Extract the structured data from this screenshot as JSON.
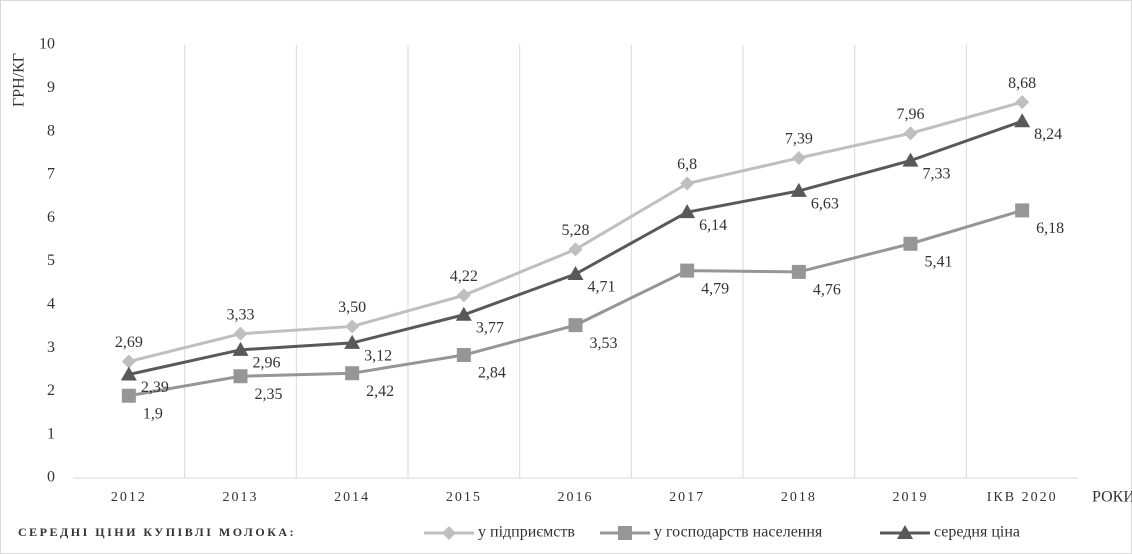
{
  "chart_data": {
    "type": "line",
    "y_label": "ГРН/КГ",
    "x_label": "РОКИ",
    "legend_title": "СЕРЕДНІ ЦІНИ КУПІВЛІ МОЛОКА:",
    "categories": [
      "2012",
      "2013",
      "2014",
      "2015",
      "2016",
      "2017",
      "2018",
      "2019",
      "ІКВ 2020"
    ],
    "series": [
      {
        "name": "у підприємств",
        "color": "#bfbfbf",
        "marker": "diamond",
        "values": [
          2.69,
          3.33,
          3.5,
          4.22,
          5.28,
          6.8,
          7.39,
          7.96,
          8.68
        ],
        "value_labels": [
          "2,69",
          "3,33",
          "3,50",
          "4,22",
          "5,28",
          "6,8",
          "7,39",
          "7,96",
          "8,68"
        ]
      },
      {
        "name": "у господарств населення",
        "color": "#969696",
        "marker": "square",
        "values": [
          1.9,
          2.35,
          2.42,
          2.84,
          3.53,
          4.79,
          4.76,
          5.41,
          6.18
        ],
        "value_labels": [
          "1,9",
          "2,35",
          "2,42",
          "2,84",
          "3,53",
          "4,79",
          "4,76",
          "5,41",
          "6,18"
        ]
      },
      {
        "name": "середня ціна",
        "color": "#595959",
        "marker": "triangle",
        "values": [
          2.39,
          2.96,
          3.12,
          3.77,
          4.71,
          6.14,
          6.63,
          7.33,
          8.24
        ],
        "value_labels": [
          "2,39",
          "2,96",
          "3,12",
          "3,77",
          "4,71",
          "6,14",
          "6,63",
          "7,33",
          "8,24"
        ]
      }
    ],
    "ylim": [
      0,
      10
    ],
    "yticks": [
      0,
      1,
      2,
      3,
      4,
      5,
      6,
      7,
      8,
      9,
      10
    ],
    "grid": "vertical",
    "legend": "bottom"
  }
}
